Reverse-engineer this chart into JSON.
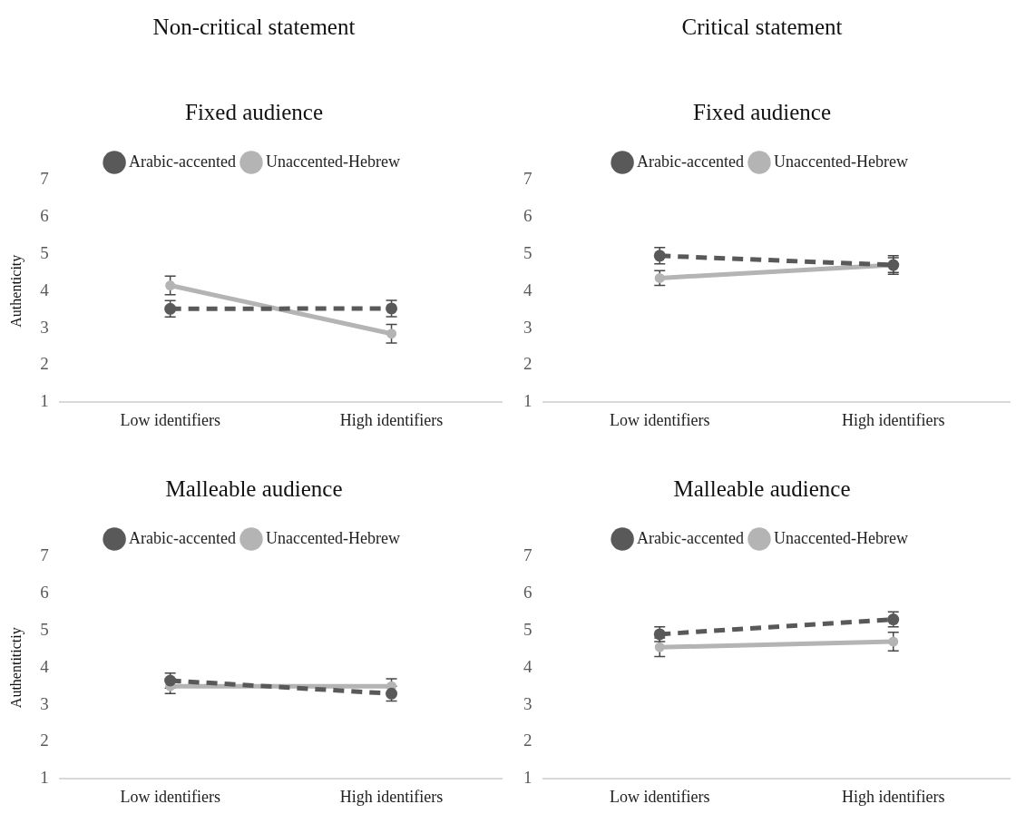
{
  "chart_data": [
    {
      "type": "line",
      "title": "Non-critical statement",
      "subtitle": "Fixed audience",
      "ylabel": "Authenticity",
      "categories": [
        "Low identifiers",
        "High identifiers"
      ],
      "ylim": [
        1,
        7
      ],
      "yticks": [
        1,
        2,
        3,
        4,
        5,
        6,
        7
      ],
      "grid": false,
      "legend": "top",
      "marker": "circle",
      "series": [
        {
          "name": "Arabic-accented",
          "color": "#595959",
          "line_style": "dashed",
          "values": [
            3.52,
            3.53
          ],
          "errors": [
            0.22,
            0.22
          ]
        },
        {
          "name": "Unaccented-Hebrew",
          "color": "#b4b4b4",
          "line_style": "solid",
          "values": [
            4.15,
            2.85
          ],
          "errors": [
            0.25,
            0.25
          ]
        }
      ]
    },
    {
      "type": "line",
      "title": "Critical statement",
      "subtitle": "Fixed audience",
      "categories": [
        "Low identifiers",
        "High identifiers"
      ],
      "ylim": [
        1,
        7
      ],
      "yticks": [
        1,
        2,
        3,
        4,
        5,
        6,
        7
      ],
      "grid": false,
      "legend": "top",
      "marker": "circle",
      "series": [
        {
          "name": "Arabic-accented",
          "color": "#595959",
          "line_style": "dashed",
          "values": [
            4.95,
            4.7
          ],
          "errors": [
            0.22,
            0.25
          ]
        },
        {
          "name": "Unaccented-Hebrew",
          "color": "#b4b4b4",
          "line_style": "solid",
          "values": [
            4.35,
            4.7
          ],
          "errors": [
            0.2,
            0.2
          ]
        }
      ]
    },
    {
      "type": "line",
      "subtitle": "Malleable audience",
      "ylabel": "Authentitictiy",
      "categories": [
        "Low identifiers",
        "High identifiers"
      ],
      "ylim": [
        1,
        7
      ],
      "yticks": [
        1,
        2,
        3,
        4,
        5,
        6,
        7
      ],
      "grid": false,
      "legend": "top",
      "marker": "circle",
      "series": [
        {
          "name": "Arabic-accented",
          "color": "#595959",
          "line_style": "dashed",
          "values": [
            3.65,
            3.3
          ],
          "errors": [
            0.2,
            0.2
          ]
        },
        {
          "name": "Unaccented-Hebrew",
          "color": "#b4b4b4",
          "line_style": "solid",
          "values": [
            3.5,
            3.5
          ],
          "errors": [
            0.2,
            0.2
          ]
        }
      ]
    },
    {
      "type": "line",
      "subtitle": "Malleable audience",
      "categories": [
        "Low identifiers",
        "High identifiers"
      ],
      "ylim": [
        1,
        7
      ],
      "yticks": [
        1,
        2,
        3,
        4,
        5,
        6,
        7
      ],
      "grid": false,
      "legend": "top",
      "marker": "circle",
      "series": [
        {
          "name": "Arabic-accented",
          "color": "#595959",
          "line_style": "dashed",
          "values": [
            4.9,
            5.3
          ],
          "errors": [
            0.2,
            0.2
          ]
        },
        {
          "name": "Unaccented-Hebrew",
          "color": "#b4b4b4",
          "line_style": "solid",
          "values": [
            4.55,
            4.7
          ],
          "errors": [
            0.25,
            0.25
          ]
        }
      ]
    }
  ]
}
